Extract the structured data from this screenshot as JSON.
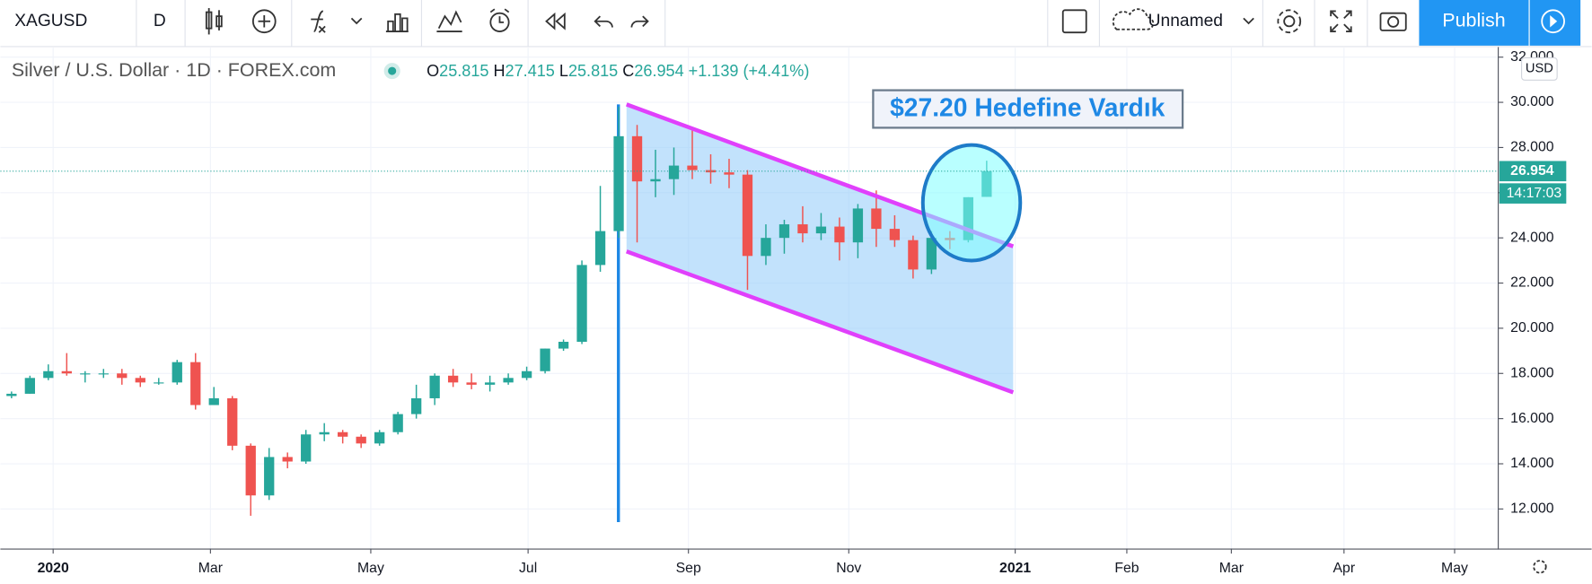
{
  "toolbar": {
    "symbol": "XAGUSD",
    "interval": "D",
    "layout_name": "Unnamed",
    "publish": "Publish"
  },
  "chart_data": {
    "type": "candlestick",
    "legend": "Silver / U.S. Dollar · 1D · FOREX.com",
    "ohlc_labels": [
      "O",
      "H",
      "L",
      "C"
    ],
    "change": "+1.139",
    "change_percent": "(+4.41%)",
    "currency": "USD",
    "countdown": "14:17:03",
    "annotation": "$27.20 Hedefine Vardık",
    "up_color": "#26a69a",
    "down_color": "#ef5350",
    "ylim": [
      10.25,
      32.42
    ],
    "yticks": [
      {
        "value": 12,
        "label": "12.000"
      },
      {
        "value": 14,
        "label": "14.000"
      },
      {
        "value": 16,
        "label": "16.000"
      },
      {
        "value": 18,
        "label": "18.000"
      },
      {
        "value": 20,
        "label": "20.000"
      },
      {
        "value": 22,
        "label": "22.000"
      },
      {
        "value": 24,
        "label": "24.000"
      },
      {
        "value": 26,
        "label": "26.000"
      },
      {
        "value": 28,
        "label": "28.000"
      },
      {
        "value": 30,
        "label": "30.000"
      },
      {
        "value": 32,
        "label": "32.000"
      }
    ],
    "xtick_labels": [
      "2020",
      "Mar",
      "May",
      "Jul",
      "Sep",
      "Nov",
      "2021",
      "Feb",
      "Mar",
      "Apr",
      "May"
    ],
    "grid": true,
    "candles": [
      [
        17.0,
        17.2,
        16.9,
        17.1
      ],
      [
        17.1,
        17.9,
        17.1,
        17.8
      ],
      [
        17.8,
        18.4,
        17.7,
        18.1
      ],
      [
        18.1,
        18.9,
        17.9,
        18.0
      ],
      [
        18.0,
        18.1,
        17.6,
        18.0
      ],
      [
        18.0,
        18.2,
        17.8,
        18.0
      ],
      [
        18.0,
        18.2,
        17.5,
        17.8
      ],
      [
        17.8,
        17.9,
        17.4,
        17.6
      ],
      [
        17.6,
        17.8,
        17.5,
        17.6
      ],
      [
        17.6,
        18.6,
        17.5,
        18.5
      ],
      [
        18.5,
        18.9,
        16.4,
        16.6
      ],
      [
        16.6,
        17.4,
        16.6,
        16.9
      ],
      [
        16.9,
        17.0,
        14.6,
        14.8
      ],
      [
        14.8,
        14.9,
        11.7,
        12.6
      ],
      [
        12.6,
        14.7,
        12.4,
        14.3
      ],
      [
        14.3,
        14.5,
        13.8,
        14.1
      ],
      [
        14.1,
        15.5,
        14.0,
        15.3
      ],
      [
        15.3,
        15.8,
        15.0,
        15.4
      ],
      [
        15.4,
        15.5,
        14.9,
        15.2
      ],
      [
        15.2,
        15.3,
        14.7,
        14.9
      ],
      [
        14.9,
        15.5,
        14.8,
        15.4
      ],
      [
        15.4,
        16.3,
        15.3,
        16.2
      ],
      [
        16.2,
        17.5,
        16.0,
        16.9
      ],
      [
        16.9,
        18.0,
        16.6,
        17.9
      ],
      [
        17.9,
        18.2,
        17.4,
        17.6
      ],
      [
        17.6,
        18.0,
        17.3,
        17.5
      ],
      [
        17.5,
        17.9,
        17.2,
        17.6
      ],
      [
        17.6,
        18.0,
        17.5,
        17.8
      ],
      [
        17.8,
        18.3,
        17.7,
        18.1
      ],
      [
        18.1,
        19.1,
        18.0,
        19.1
      ],
      [
        19.1,
        19.5,
        19.0,
        19.4
      ],
      [
        19.4,
        23.0,
        19.3,
        22.8
      ],
      [
        22.8,
        26.3,
        22.5,
        24.3
      ],
      [
        24.3,
        29.8,
        24.0,
        28.5
      ],
      [
        28.5,
        29.0,
        23.8,
        26.5
      ],
      [
        26.5,
        27.9,
        25.8,
        26.6
      ],
      [
        26.6,
        28.0,
        25.9,
        27.2
      ],
      [
        27.2,
        28.8,
        26.6,
        27.0
      ],
      [
        27.0,
        27.7,
        26.4,
        26.9
      ],
      [
        26.9,
        27.5,
        26.2,
        26.8
      ],
      [
        26.8,
        27.0,
        21.7,
        23.2
      ],
      [
        23.2,
        24.6,
        22.8,
        24.0
      ],
      [
        24.0,
        24.8,
        23.3,
        24.6
      ],
      [
        24.6,
        25.4,
        23.8,
        24.2
      ],
      [
        24.2,
        25.1,
        23.9,
        24.5
      ],
      [
        24.5,
        24.9,
        23.0,
        23.8
      ],
      [
        23.8,
        25.5,
        23.1,
        25.3
      ],
      [
        25.3,
        26.1,
        23.6,
        24.4
      ],
      [
        24.4,
        25.0,
        23.6,
        23.9
      ],
      [
        23.9,
        24.1,
        22.2,
        22.6
      ],
      [
        22.6,
        24.3,
        22.4,
        24.0
      ],
      [
        24.0,
        24.3,
        23.5,
        23.9
      ],
      [
        23.9,
        25.8,
        23.8,
        25.8
      ],
      [
        25.815,
        27.415,
        25.815,
        26.954
      ]
    ]
  }
}
